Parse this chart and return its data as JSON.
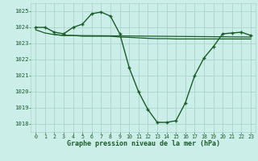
{
  "xlabel": "Graphe pression niveau de la mer (hPa)",
  "background_color": "#cceee8",
  "grid_color": "#aad4cc",
  "line_color": "#1a5c2a",
  "xlim": [
    -0.5,
    23.5
  ],
  "ylim": [
    1017.5,
    1025.5
  ],
  "yticks": [
    1018,
    1019,
    1020,
    1021,
    1022,
    1023,
    1024,
    1025
  ],
  "xticks": [
    0,
    1,
    2,
    3,
    4,
    5,
    6,
    7,
    8,
    9,
    10,
    11,
    12,
    13,
    14,
    15,
    16,
    17,
    18,
    19,
    20,
    21,
    22,
    23
  ],
  "series1_x": [
    0,
    1,
    2,
    3,
    4,
    5,
    6,
    7,
    8,
    9,
    10,
    11,
    12,
    13,
    14,
    15,
    16,
    17,
    18,
    19,
    20,
    21,
    22,
    23
  ],
  "series1_y": [
    1024.0,
    1024.0,
    1023.7,
    1023.6,
    1024.0,
    1024.2,
    1024.85,
    1024.95,
    1024.7,
    1023.6,
    1021.5,
    1020.0,
    1018.9,
    1018.1,
    1018.1,
    1018.2,
    1019.3,
    1021.0,
    1022.1,
    1022.8,
    1023.6,
    1023.65,
    1023.7,
    1023.5
  ],
  "series2_x": [
    0,
    1,
    2,
    3,
    23
  ],
  "series2_y": [
    1023.85,
    1023.65,
    1023.55,
    1023.5,
    1023.4
  ],
  "series3_x": [
    2,
    3,
    4,
    5,
    6,
    7,
    8,
    9,
    10,
    11,
    12,
    13,
    14,
    15,
    16,
    17,
    18,
    19,
    20,
    21,
    22,
    23
  ],
  "series3_y": [
    1023.55,
    1023.5,
    1023.5,
    1023.45,
    1023.45,
    1023.45,
    1023.45,
    1023.4,
    1023.38,
    1023.35,
    1023.32,
    1023.3,
    1023.3,
    1023.28,
    1023.28,
    1023.28,
    1023.28,
    1023.28,
    1023.28,
    1023.28,
    1023.28,
    1023.28
  ]
}
